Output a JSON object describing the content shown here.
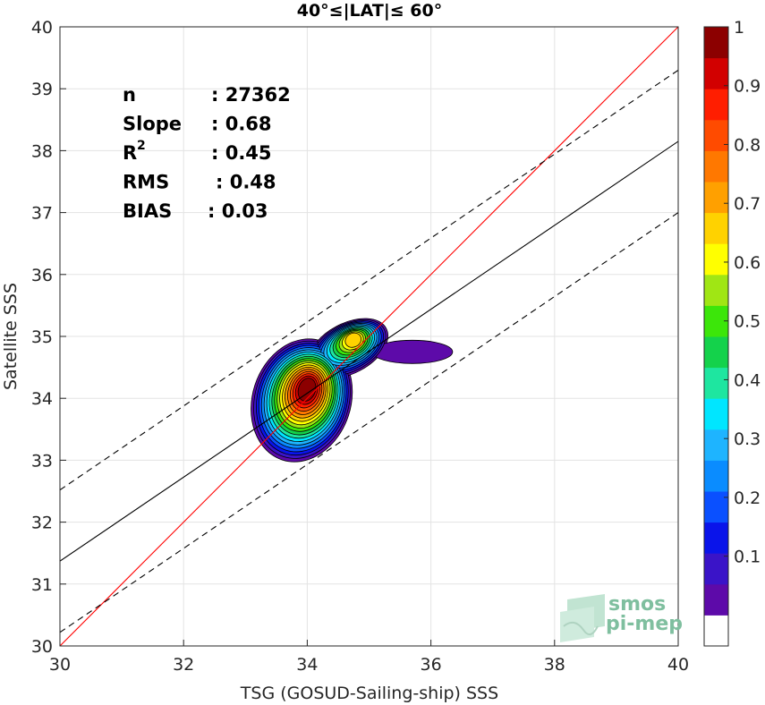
{
  "chart_data": {
    "type": "contour",
    "title": "40°≤|LAT|≤ 60°",
    "xlabel": "TSG (GOSUD-Sailing-ship) SSS",
    "ylabel": "Satellite SSS",
    "xlim": [
      30,
      40
    ],
    "ylim": [
      30,
      40
    ],
    "xticks": [
      "30",
      "32",
      "34",
      "36",
      "38",
      "40"
    ],
    "yticks": [
      "30",
      "31",
      "32",
      "33",
      "34",
      "35",
      "36",
      "37",
      "38",
      "39",
      "40"
    ],
    "grid": true,
    "stats": [
      {
        "label": "n",
        "value": ": 27362"
      },
      {
        "label": "Slope",
        "value": ": 0.68"
      },
      {
        "label": "R",
        "sup": "2",
        "value": ": 0.45"
      },
      {
        "label": "RMS",
        "value": ": 0.48"
      },
      {
        "label": "BIAS",
        "value": ": 0.03"
      }
    ],
    "lines": {
      "identity": {
        "color": "#ff0000",
        "x": [
          30,
          40
        ],
        "y": [
          30,
          40
        ]
      },
      "regression": {
        "color": "#000000",
        "x": [
          30,
          40
        ],
        "y": [
          31.37,
          38.15
        ]
      },
      "upper_bound": {
        "color": "#000000",
        "dash": true,
        "x": [
          30,
          40
        ],
        "y": [
          32.52,
          39.3
        ]
      },
      "lower_bound": {
        "color": "#000000",
        "dash": true,
        "x": [
          30,
          40
        ],
        "y": [
          30.22,
          37.0
        ]
      }
    },
    "density_peaks": [
      {
        "x": 34.0,
        "y": 34.15,
        "level": 1.0
      },
      {
        "x": 34.75,
        "y": 34.95,
        "level": 0.7
      }
    ],
    "colorbar": {
      "range": [
        0,
        1
      ],
      "ticks": [
        "0.1",
        "0.2",
        "0.3",
        "0.4",
        "0.5",
        "0.6",
        "0.7",
        "0.8",
        "0.9",
        "1"
      ],
      "colors": [
        "#ffffff",
        "#5d0aa9",
        "#3a14c8",
        "#0a14ea",
        "#0a50ff",
        "#0a8cff",
        "#1eb4ff",
        "#00e6ff",
        "#1ee6a0",
        "#14d24b",
        "#3ce60a",
        "#a0e614",
        "#ffff00",
        "#ffd200",
        "#ffa000",
        "#ff7800",
        "#ff4b00",
        "#ff1e00",
        "#d20000",
        "#8c0000"
      ]
    },
    "logo": {
      "line1": "smos",
      "line2": "pi-mep"
    }
  }
}
